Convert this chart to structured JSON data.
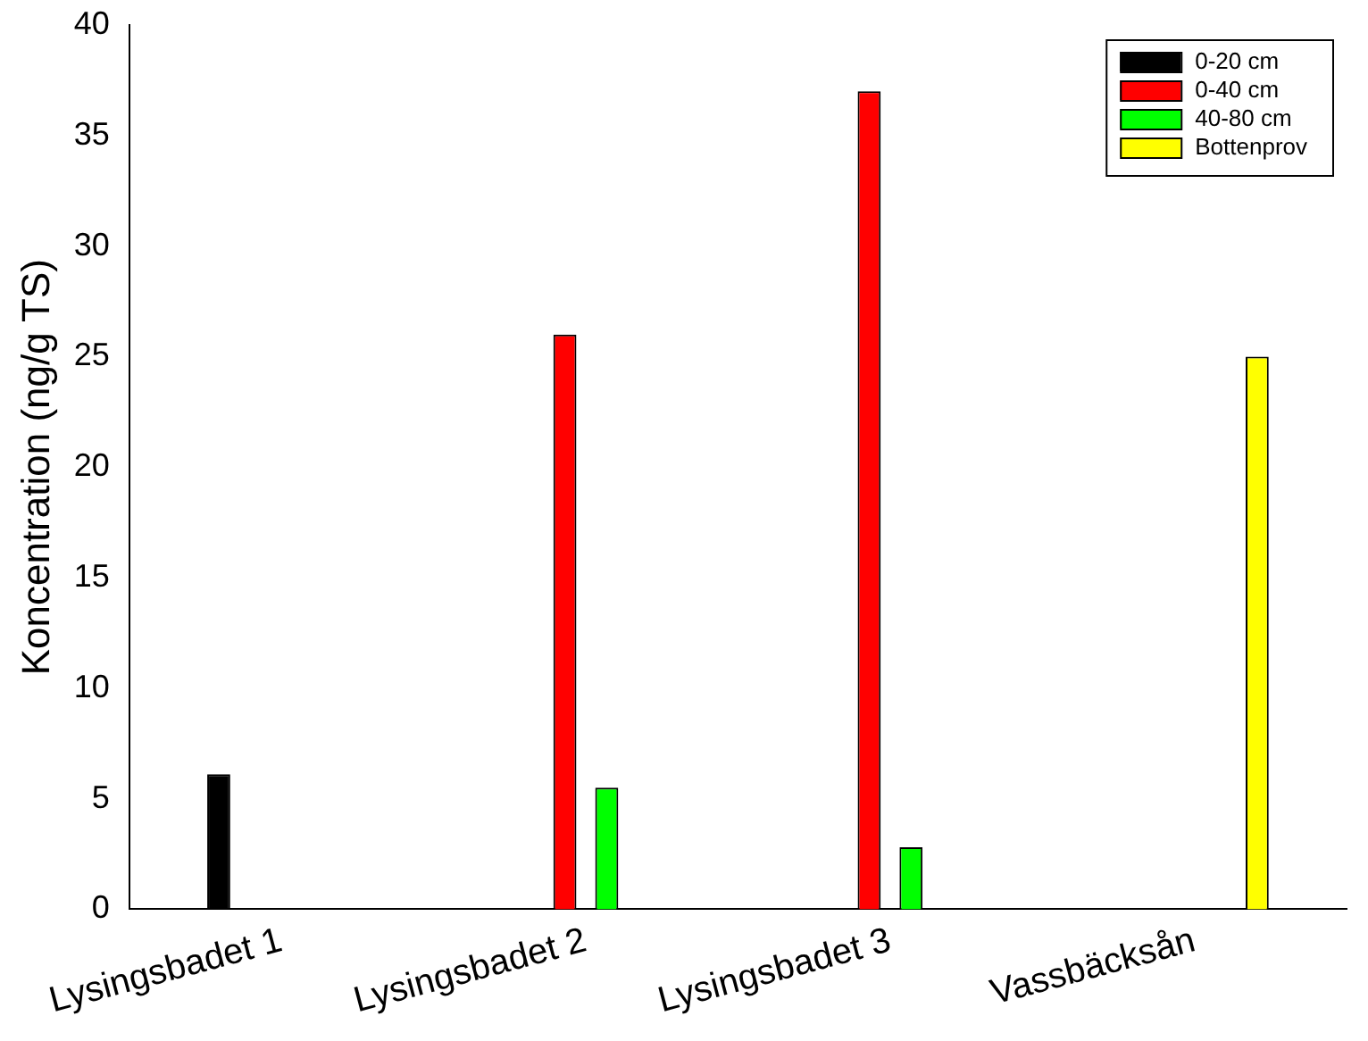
{
  "chart_data": {
    "type": "bar",
    "ylabel": "Koncentration (ng/g TS)",
    "categories": [
      "Lysingsbadet 1",
      "Lysingsbadet 2",
      "Lysingsbadet 3",
      "Vassbäcksån"
    ],
    "series": [
      {
        "name": "0-20 cm",
        "color": "#000000",
        "values": [
          6.1,
          null,
          null,
          null
        ]
      },
      {
        "name": "0-40 cm",
        "color": "#ff0000",
        "values": [
          null,
          26,
          37,
          null
        ]
      },
      {
        "name": "40-80 cm",
        "color": "#00ff00",
        "values": [
          null,
          5.5,
          2.8,
          null
        ]
      },
      {
        "name": "Bottenprov",
        "color": "#ffff00",
        "values": [
          null,
          null,
          null,
          25
        ]
      }
    ],
    "ylim": [
      0,
      40
    ],
    "yticks": [
      0,
      5,
      10,
      15,
      20,
      25,
      30,
      35,
      40
    ],
    "grid": false,
    "legend": "top right"
  }
}
